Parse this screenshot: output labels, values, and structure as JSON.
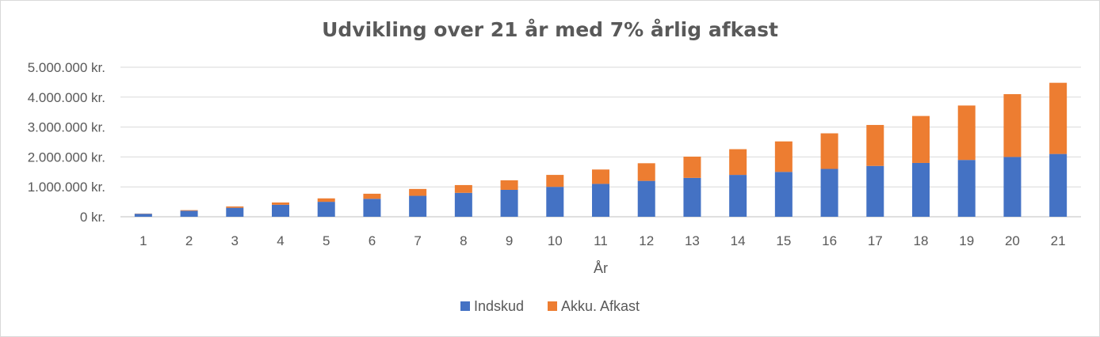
{
  "chart_data": {
    "type": "bar",
    "stacked": true,
    "title": "Udvikling over 21 år med 7% årlig afkast",
    "xlabel": "År",
    "ylabel": "",
    "ylim": [
      0,
      5000000
    ],
    "y_ticks": [
      "0 kr.",
      "1.000.000 kr.",
      "2.000.000 kr.",
      "3.000.000 kr.",
      "4.000.000 kr.",
      "5.000.000 kr."
    ],
    "categories": [
      "1",
      "2",
      "3",
      "4",
      "5",
      "6",
      "7",
      "8",
      "9",
      "10",
      "11",
      "12",
      "13",
      "14",
      "15",
      "16",
      "17",
      "18",
      "19",
      "20",
      "21"
    ],
    "series": [
      {
        "name": "Indskud",
        "color": "#4472C4",
        "values": [
          100000,
          200000,
          300000,
          400000,
          500000,
          600000,
          700000,
          800000,
          900000,
          1000000,
          1100000,
          1200000,
          1300000,
          1400000,
          1500000,
          1600000,
          1700000,
          1800000,
          1900000,
          2000000,
          2100000
        ]
      },
      {
        "name": "Akku. Afkast",
        "color": "#ED7D31",
        "values": [
          7000,
          21000,
          44000,
          77000,
          115000,
          170000,
          230000,
          260000,
          320000,
          400000,
          480000,
          590000,
          710000,
          860000,
          1020000,
          1190000,
          1370000,
          1570000,
          1820000,
          2100000,
          2380000
        ]
      }
    ],
    "grid": true,
    "legend_position": "bottom"
  }
}
